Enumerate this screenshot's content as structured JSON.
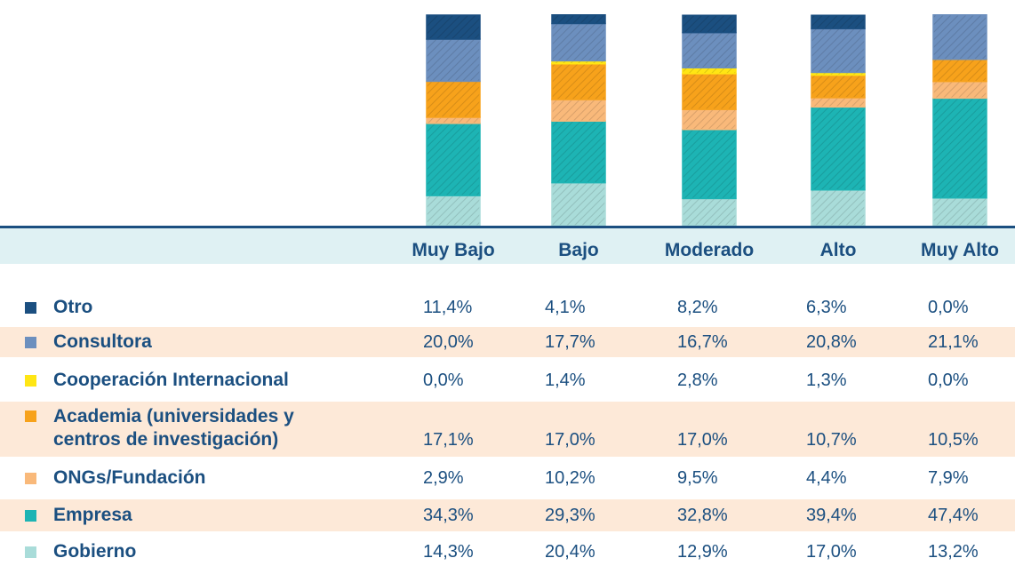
{
  "chart_data": {
    "type": "stacked_bar",
    "categories": [
      "Muy Bajo",
      "Bajo",
      "Moderado",
      "Alto",
      "Muy Alto"
    ],
    "ylim": [
      0,
      100
    ],
    "series": [
      {
        "name": "Otro",
        "color": "#1b4f80",
        "values": [
          11.4,
          4.1,
          8.2,
          6.3,
          0.0
        ],
        "value_labels": [
          "11,4%",
          "4,1%",
          "8,2%",
          "6,3%",
          "0,0%"
        ]
      },
      {
        "name": "Consultora",
        "color": "#6c8fbe",
        "values": [
          20.0,
          17.7,
          16.7,
          20.8,
          21.1
        ],
        "value_labels": [
          "20,0%",
          "17,7%",
          "16,7%",
          "20,8%",
          "21,1%"
        ]
      },
      {
        "name": "Cooperación Internacional",
        "color": "#ffe614",
        "values": [
          0.0,
          1.4,
          2.8,
          1.3,
          0.0
        ],
        "value_labels": [
          "0,0%",
          "1,4%",
          "2,8%",
          "1,3%",
          "0,0%"
        ]
      },
      {
        "name": "Academia (universidades y centros de investigación)",
        "color": "#f7a21b",
        "values": [
          17.1,
          17.0,
          17.0,
          10.7,
          10.5
        ],
        "value_labels": [
          "17,1%",
          "17,0%",
          "17,0%",
          "10,7%",
          "10,5%"
        ]
      },
      {
        "name": "ONGs/Fundación",
        "color": "#f9b97a",
        "values": [
          2.9,
          10.2,
          9.5,
          4.4,
          7.9
        ],
        "value_labels": [
          "2,9%",
          "10,2%",
          "9,5%",
          "4,4%",
          "7,9%"
        ]
      },
      {
        "name": "Empresa",
        "color": "#1db4b4",
        "values": [
          34.3,
          29.3,
          32.8,
          39.4,
          47.4
        ],
        "value_labels": [
          "34,3%",
          "29,3%",
          "32,8%",
          "39,4%",
          "47,4%"
        ]
      },
      {
        "name": "Gobierno",
        "color": "#a9dcd9",
        "values": [
          14.3,
          20.4,
          12.9,
          17.0,
          13.2
        ],
        "value_labels": [
          "14,3%",
          "20,4%",
          "12,9%",
          "17,0%",
          "13,2%"
        ]
      }
    ]
  }
}
